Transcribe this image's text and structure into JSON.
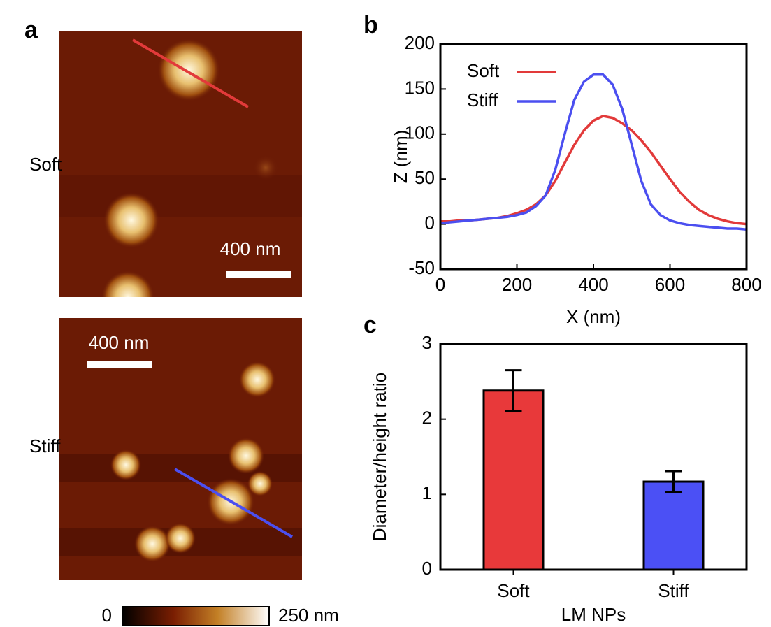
{
  "panel_a": {
    "label": "a",
    "images": [
      {
        "name": "Soft",
        "scale_bar": "400 nm"
      },
      {
        "name": "Stiff",
        "scale_bar": "400 nm"
      }
    ],
    "colorbar": {
      "min_label": "0",
      "max_label": "250 nm"
    }
  },
  "chart_data": [
    {
      "type": "line",
      "panel_label": "b",
      "xlabel": "X (nm)",
      "ylabel": "Z (nm)",
      "x": [
        0,
        25,
        50,
        75,
        100,
        125,
        150,
        175,
        200,
        225,
        250,
        275,
        300,
        325,
        350,
        375,
        400,
        425,
        450,
        475,
        500,
        525,
        550,
        575,
        600,
        625,
        650,
        675,
        700,
        725,
        750,
        775,
        800
      ],
      "series": [
        {
          "name": "Soft",
          "color": "#e23a3a",
          "values": [
            3,
            3,
            4,
            4,
            5,
            6,
            7,
            9,
            12,
            16,
            22,
            32,
            48,
            68,
            88,
            104,
            115,
            120,
            118,
            112,
            104,
            93,
            80,
            65,
            50,
            36,
            25,
            16,
            10,
            6,
            3,
            1,
            0
          ]
        },
        {
          "name": "Stiff",
          "color": "#4b4ff0",
          "values": [
            1,
            2,
            3,
            4,
            5,
            6,
            7,
            8,
            10,
            13,
            20,
            32,
            60,
            100,
            138,
            158,
            166,
            166,
            155,
            128,
            88,
            48,
            22,
            10,
            4,
            1,
            -1,
            -2,
            -3,
            -4,
            -5,
            -5,
            -6
          ]
        }
      ],
      "xlim": [
        0,
        800
      ],
      "ylim": [
        -50,
        200
      ],
      "xticks": [
        0,
        200,
        400,
        600,
        800
      ],
      "yticks": [
        -50,
        0,
        50,
        100,
        150,
        200
      ],
      "legend": "upper left"
    },
    {
      "type": "bar",
      "panel_label": "c",
      "xlabel": "LM NPs",
      "ylabel": "Diameter/height ratio",
      "categories": [
        "Soft",
        "Stiff"
      ],
      "values": [
        2.38,
        1.17
      ],
      "errors": [
        0.27,
        0.14
      ],
      "colors": [
        "#e8393a",
        "#4b50f5"
      ],
      "ylim": [
        0,
        3
      ],
      "yticks": [
        0,
        1,
        2,
        3
      ]
    }
  ]
}
